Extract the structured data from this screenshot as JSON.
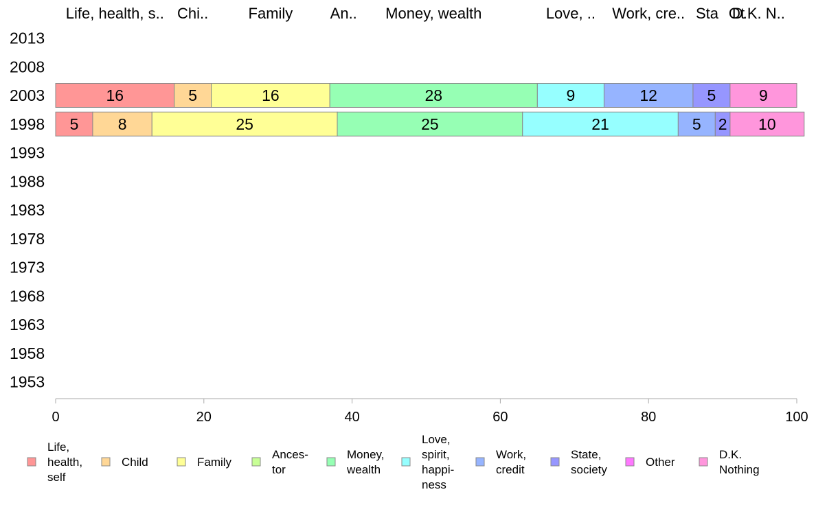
{
  "chart_data": {
    "type": "bar",
    "orientation": "horizontal",
    "stacked": true,
    "categories": [
      "2013",
      "2008",
      "2003",
      "1998",
      "1993",
      "1988",
      "1983",
      "1978",
      "1973",
      "1968",
      "1963",
      "1958",
      "1953"
    ],
    "xlim": [
      0,
      100
    ],
    "xticks": [
      "0",
      "20",
      "40",
      "60",
      "80",
      "100"
    ],
    "grid": false,
    "legend_position": "bottom",
    "top_labels": [
      "Life, health, s..",
      "Chi..",
      "Family",
      "An..",
      "Money, wealth",
      "Love, ..",
      "Work, cre..",
      "Sta",
      "Ot",
      "D.K. N.."
    ],
    "series": [
      {
        "name": "Life,\nhealth,\nself",
        "color": "#ff9696",
        "values": [
          null,
          null,
          16,
          5,
          null,
          null,
          null,
          null,
          null,
          null,
          null,
          null,
          null
        ]
      },
      {
        "name": "Child",
        "color": "#ffd796",
        "values": [
          null,
          null,
          5,
          8,
          null,
          null,
          null,
          null,
          null,
          null,
          null,
          null,
          null
        ]
      },
      {
        "name": "Family",
        "color": "#ffff96",
        "values": [
          null,
          null,
          16,
          25,
          null,
          null,
          null,
          null,
          null,
          null,
          null,
          null,
          null
        ]
      },
      {
        "name": "Ances-\ntor",
        "color": "#c8ff96",
        "values": [
          null,
          null,
          0,
          0,
          null,
          null,
          null,
          null,
          null,
          null,
          null,
          null,
          null
        ]
      },
      {
        "name": "Money,\nwealth",
        "color": "#96ffb4",
        "values": [
          null,
          null,
          28,
          25,
          null,
          null,
          null,
          null,
          null,
          null,
          null,
          null,
          null
        ]
      },
      {
        "name": "Love,\nspirit,\nhappi-\nness",
        "color": "#96ffff",
        "values": [
          null,
          null,
          9,
          21,
          null,
          null,
          null,
          null,
          null,
          null,
          null,
          null,
          null
        ]
      },
      {
        "name": "Work,\ncredit",
        "color": "#96b4ff",
        "values": [
          null,
          null,
          12,
          5,
          null,
          null,
          null,
          null,
          null,
          null,
          null,
          null,
          null
        ]
      },
      {
        "name": "State,\nsociety",
        "color": "#9696ff",
        "values": [
          null,
          null,
          5,
          2,
          null,
          null,
          null,
          null,
          null,
          null,
          null,
          null,
          null
        ]
      },
      {
        "name": "Other",
        "color": "#ff78ff",
        "values": [
          null,
          null,
          0,
          0,
          null,
          null,
          null,
          null,
          null,
          null,
          null,
          null,
          null
        ]
      },
      {
        "name": "D.K.\nNothing",
        "color": "#ff96dc",
        "values": [
          null,
          null,
          9,
          10,
          null,
          null,
          null,
          null,
          null,
          null,
          null,
          null,
          null
        ]
      }
    ]
  }
}
